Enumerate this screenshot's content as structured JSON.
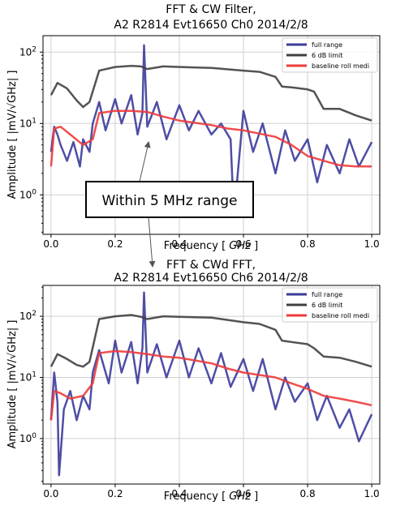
{
  "chart_data": [
    {
      "type": "line",
      "title": [
        "FFT & CW Filter,",
        "A2 R2814 Evt16650 Ch0 2014/2/8"
      ],
      "xlabel_prefix": "Frequency [ ",
      "xlabel_unit": "GHz",
      "xlabel_suffix": " ]",
      "ylabel": "Amplitude [ |mV/√GHz| ]",
      "xlim": [
        -0.025,
        1.025
      ],
      "ylim": [
        0.28,
        170
      ],
      "yscale": "log",
      "grid": true,
      "x_ticks": [
        "0.0",
        "0.2",
        "0.4",
        "0.6",
        "0.8",
        "1.0"
      ],
      "y_ticks": [
        {
          "base": "10",
          "exp": "0",
          "value": 1
        },
        {
          "base": "10",
          "exp": "1",
          "value": 10
        },
        {
          "base": "10",
          "exp": "2",
          "value": 100
        }
      ],
      "legend_position": "top-right",
      "series": [
        {
          "name": "full range",
          "color": "#3b3b9b",
          "x": [
            0.0,
            0.01,
            0.02,
            0.03,
            0.05,
            0.07,
            0.09,
            0.1,
            0.12,
            0.13,
            0.15,
            0.17,
            0.2,
            0.22,
            0.25,
            0.27,
            0.285,
            0.29,
            0.3,
            0.33,
            0.36,
            0.4,
            0.43,
            0.46,
            0.5,
            0.53,
            0.56,
            0.57,
            0.6,
            0.63,
            0.66,
            0.7,
            0.73,
            0.76,
            0.8,
            0.83,
            0.86,
            0.9,
            0.93,
            0.96,
            1.0
          ],
          "y": [
            4.0,
            9.0,
            7.0,
            5.0,
            3.0,
            5.5,
            2.5,
            6.0,
            4.0,
            10.0,
            20.0,
            8.0,
            22.0,
            10.0,
            25.0,
            7.0,
            14.0,
            125.0,
            9.0,
            20.0,
            6.0,
            18.0,
            8.0,
            15.0,
            7.0,
            10.0,
            6.0,
            0.5,
            15.0,
            4.0,
            10.0,
            2.0,
            8.0,
            3.0,
            6.0,
            1.5,
            5.0,
            2.0,
            6.0,
            2.5,
            5.5
          ]
        },
        {
          "name": "6 dB limit",
          "color": "#404040",
          "x": [
            0.0,
            0.02,
            0.05,
            0.08,
            0.1,
            0.12,
            0.15,
            0.2,
            0.25,
            0.28,
            0.3,
            0.35,
            0.4,
            0.5,
            0.6,
            0.65,
            0.7,
            0.72,
            0.75,
            0.8,
            0.82,
            0.85,
            0.9,
            0.95,
            1.0
          ],
          "y": [
            25.0,
            37.0,
            31.0,
            21.0,
            17.0,
            20.0,
            55.0,
            62.0,
            64.0,
            63.0,
            58.0,
            63.0,
            62.0,
            60.0,
            55.0,
            53.0,
            45.0,
            33.0,
            32.0,
            30.0,
            28.0,
            16.0,
            16.0,
            13.0,
            11.0
          ]
        },
        {
          "name": "baseline roll medi",
          "color": "#ee3b3b",
          "x": [
            0.0,
            0.01,
            0.03,
            0.06,
            0.1,
            0.13,
            0.15,
            0.2,
            0.25,
            0.3,
            0.35,
            0.4,
            0.5,
            0.55,
            0.6,
            0.7,
            0.75,
            0.8,
            0.85,
            0.9,
            0.95,
            1.0
          ],
          "y": [
            2.5,
            8.5,
            9.0,
            7.0,
            5.0,
            6.0,
            14.0,
            15.0,
            15.0,
            14.5,
            12.5,
            11.0,
            9.5,
            8.5,
            8.0,
            6.5,
            5.0,
            3.5,
            3.0,
            2.6,
            2.5,
            2.5
          ]
        }
      ]
    },
    {
      "type": "line",
      "title": [
        "FFT & CWd FFT,",
        "A2 R2814 Evt16650 Ch6 2014/2/8"
      ],
      "xlabel_prefix": "Frequency [ ",
      "xlabel_unit": "GHz",
      "xlabel_suffix": " ]",
      "ylabel": "Amplitude [ |mV/√GHz| ]",
      "xlim": [
        -0.025,
        1.025
      ],
      "ylim": [
        0.18,
        320
      ],
      "yscale": "log",
      "grid": true,
      "x_ticks": [
        "0.0",
        "0.2",
        "0.4",
        "0.6",
        "0.8",
        "1.0"
      ],
      "y_ticks": [
        {
          "base": "10",
          "exp": "0",
          "value": 1
        },
        {
          "base": "10",
          "exp": "1",
          "value": 10
        },
        {
          "base": "10",
          "exp": "2",
          "value": 100
        }
      ],
      "legend_position": "top-right",
      "series": [
        {
          "name": "full range",
          "color": "#3b3b9b",
          "x": [
            0.0,
            0.01,
            0.02,
            0.025,
            0.04,
            0.06,
            0.08,
            0.1,
            0.12,
            0.13,
            0.15,
            0.18,
            0.2,
            0.22,
            0.25,
            0.27,
            0.285,
            0.29,
            0.3,
            0.33,
            0.36,
            0.4,
            0.43,
            0.46,
            0.5,
            0.53,
            0.56,
            0.6,
            0.63,
            0.66,
            0.7,
            0.73,
            0.76,
            0.8,
            0.83,
            0.86,
            0.9,
            0.93,
            0.96,
            1.0
          ],
          "y": [
            2.0,
            12.0,
            4.0,
            0.25,
            3.0,
            6.0,
            2.0,
            5.0,
            3.0,
            12.0,
            28.0,
            8.0,
            40.0,
            12.0,
            38.0,
            8.0,
            30.0,
            245.0,
            12.0,
            35.0,
            10.0,
            40.0,
            10.0,
            30.0,
            8.0,
            25.0,
            7.0,
            20.0,
            6.0,
            20.0,
            3.0,
            10.0,
            4.0,
            8.0,
            2.0,
            5.0,
            1.5,
            3.0,
            0.9,
            2.5
          ]
        },
        {
          "name": "6 dB limit",
          "color": "#404040",
          "x": [
            0.0,
            0.02,
            0.05,
            0.08,
            0.1,
            0.12,
            0.15,
            0.2,
            0.25,
            0.28,
            0.3,
            0.35,
            0.4,
            0.5,
            0.6,
            0.65,
            0.7,
            0.72,
            0.75,
            0.8,
            0.82,
            0.85,
            0.9,
            0.95,
            1.0
          ],
          "y": [
            15.0,
            24.0,
            20.0,
            16.0,
            15.0,
            18.0,
            90.0,
            100.0,
            105.0,
            98.0,
            90.0,
            100.0,
            98.0,
            95.0,
            80.0,
            75.0,
            60.0,
            40.0,
            38.0,
            35.0,
            30.0,
            22.0,
            21.0,
            18.0,
            15.0
          ]
        },
        {
          "name": "baseline roll medi",
          "color": "#ee3b3b",
          "x": [
            0.0,
            0.01,
            0.03,
            0.06,
            0.1,
            0.13,
            0.15,
            0.2,
            0.25,
            0.3,
            0.35,
            0.4,
            0.5,
            0.55,
            0.6,
            0.7,
            0.75,
            0.8,
            0.85,
            0.9,
            0.95,
            1.0
          ],
          "y": [
            2.0,
            6.0,
            5.5,
            4.5,
            5.0,
            8.0,
            25.0,
            27.0,
            26.0,
            24.0,
            22.0,
            21.0,
            17.0,
            14.0,
            12.0,
            10.0,
            8.0,
            6.5,
            5.0,
            4.5,
            4.0,
            3.5
          ]
        }
      ]
    }
  ],
  "annotation": {
    "text": "Within 5 MHz range"
  }
}
